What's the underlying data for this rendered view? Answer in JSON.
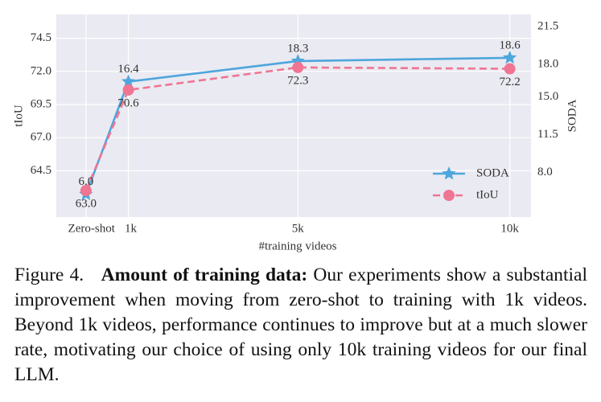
{
  "chart_data": {
    "type": "line",
    "xlabel": "#training videos",
    "ylabel": "tIoU",
    "y2label": "SODA",
    "x": [
      0,
      1000,
      5000,
      10000
    ],
    "xlim": [
      -700,
      10500
    ],
    "xticks": [
      {
        "value": 0,
        "label": "Zero-shot"
      },
      {
        "value": 1000,
        "label": "1k"
      },
      {
        "value": 5000,
        "label": "5k"
      },
      {
        "value": 10000,
        "label": "10k"
      }
    ],
    "ylim": [
      61.0,
      76.3
    ],
    "yticks": [
      64.5,
      {
        "value": 67,
        "label": "67.0"
      },
      69.5,
      {
        "value": 72,
        "label": "72.0"
      },
      74.5
    ],
    "y2lim": [
      3.9,
      22.6
    ],
    "y2ticks": [
      {
        "value": 8,
        "label": "8.0"
      },
      11.5,
      {
        "value": 15,
        "label": "15.0"
      },
      {
        "value": 18,
        "label": "18.0"
      },
      21.5
    ],
    "grid": true,
    "legend": "lower right",
    "series": [
      {
        "name": "SODA",
        "color": "#4ea6dc",
        "axis": "y2",
        "marker": "star",
        "dash": false,
        "values": [
          6,
          16.4,
          18.3,
          18.6
        ],
        "value_labels": [
          "6.0",
          "16.4",
          "18.3",
          "18.6"
        ]
      },
      {
        "name": "tIoU",
        "color": "#ef7592",
        "marker": "circle",
        "dash": true,
        "values": [
          63,
          70.6,
          72.3,
          72.2
        ],
        "value_labels": [
          "63.0",
          "70.6",
          "72.3",
          "72.2"
        ]
      }
    ]
  },
  "caption": {
    "label": "Figure 4.",
    "bold": "Amount of training data:",
    "text": "Our experiments show a substantial improvement when moving from zero-shot to training with 1k videos. Beyond 1k videos, performance continues to improve but at a much slower rate, motivating our choice of using only 10k training videos for our final LLM."
  }
}
